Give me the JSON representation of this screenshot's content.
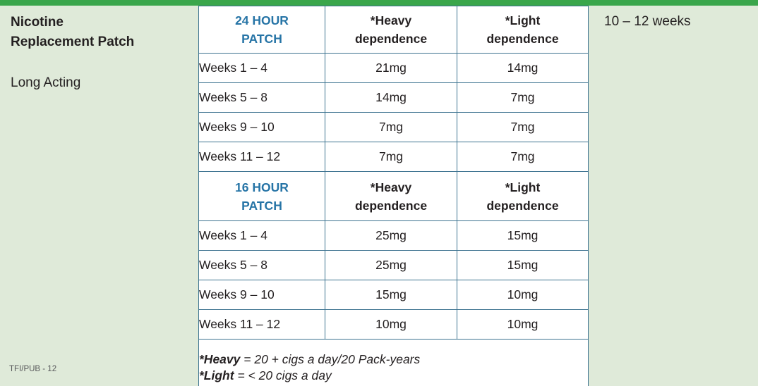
{
  "colors": {
    "top_bar_green": "#3aa64b",
    "page_background": "#dfead9",
    "table_border_teal": "#3d7390",
    "patch_header_blue": "#2674a6",
    "body_text": "#231f20"
  },
  "left_panel": {
    "title_line1": "Nicotine",
    "title_line2": "Replacement Patch",
    "subtitle": "Long Acting"
  },
  "right_panel": {
    "duration": "10 – 12 weeks"
  },
  "table": {
    "sections": [
      {
        "header": {
          "patch_line1": "24 HOUR",
          "patch_line2": "PATCH",
          "heavy_line1": "*Heavy",
          "heavy_line2": "dependence",
          "light_line1": "*Light",
          "light_line2": "dependence"
        },
        "rows": [
          {
            "range": "Weeks 1 – 4",
            "heavy": "21mg",
            "light": "14mg"
          },
          {
            "range": "Weeks 5 – 8",
            "heavy": "14mg",
            "light": "7mg"
          },
          {
            "range": "Weeks 9 – 10",
            "heavy": "7mg",
            "light": "7mg"
          },
          {
            "range": "Weeks 11 – 12",
            "heavy": "7mg",
            "light": "7mg"
          }
        ]
      },
      {
        "header": {
          "patch_line1": "16 HOUR",
          "patch_line2": "PATCH",
          "heavy_line1": "*Heavy",
          "heavy_line2": "dependence",
          "light_line1": "*Light",
          "light_line2": "dependence"
        },
        "rows": [
          {
            "range": "Weeks 1 – 4",
            "heavy": "25mg",
            "light": "15mg"
          },
          {
            "range": "Weeks 5 – 8",
            "heavy": "25mg",
            "light": "15mg"
          },
          {
            "range": "Weeks 9 – 10",
            "heavy": "15mg",
            "light": "10mg"
          },
          {
            "range": "Weeks 11 – 12",
            "heavy": "10mg",
            "light": "10mg"
          }
        ]
      }
    ],
    "footnotes": [
      {
        "term": "*Heavy",
        "text": " = 20 + cigs a day/20 Pack-years"
      },
      {
        "term": "*Light",
        "text": " = < 20 cigs a day"
      }
    ]
  },
  "page": {
    "doc_code": "TFI/PUB - 12"
  }
}
